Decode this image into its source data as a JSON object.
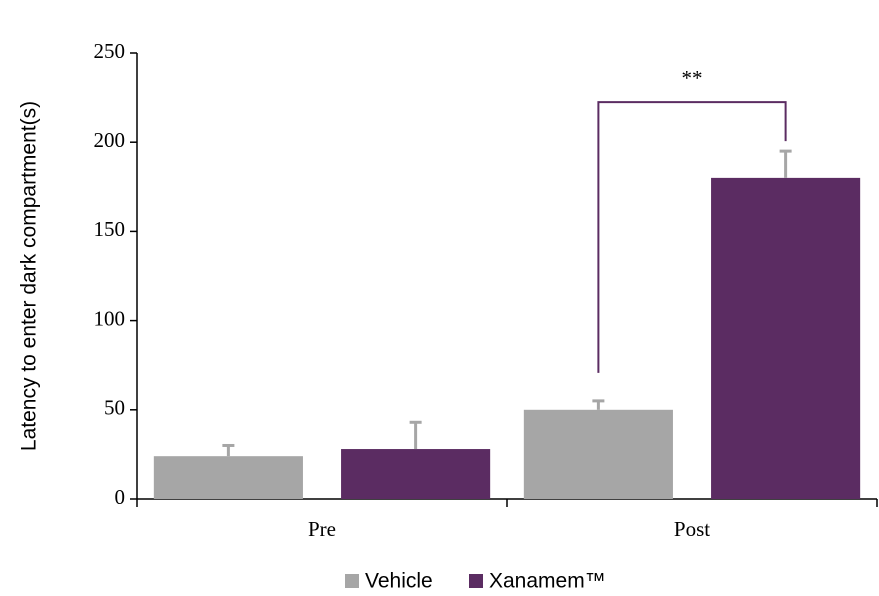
{
  "chart_data": {
    "type": "bar",
    "ylabel": "Latency to enter dark compartment(s)",
    "categories": [
      "Pre",
      "Post"
    ],
    "series": [
      {
        "name": "Vehicle",
        "color": "#a6a6a6",
        "values": [
          24,
          50
        ],
        "errors": [
          6,
          5
        ]
      },
      {
        "name": "Xanamem™",
        "color": "#5b2c62",
        "values": [
          28,
          180
        ],
        "errors": [
          15,
          15
        ]
      }
    ],
    "ylim": [
      0,
      250
    ],
    "yticks": [
      0,
      50,
      100,
      150,
      200,
      250
    ],
    "annotation": "**",
    "legend": "bottom",
    "grid": false
  }
}
